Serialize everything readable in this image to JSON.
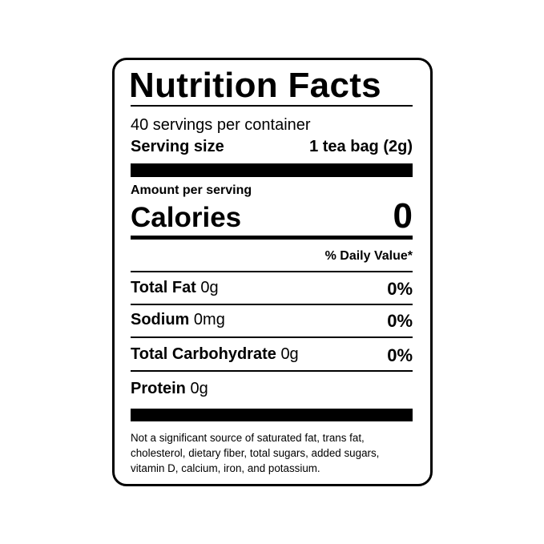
{
  "label": {
    "title": "Nutrition Facts",
    "servings": "40 servings per container",
    "serving_size_label": "Serving size",
    "serving_size_value": "1 tea bag (2g)",
    "amount_per_serving": "Amount per serving",
    "calories_label": "Calories",
    "calories_value": 0,
    "daily_value_header": "% Daily Value*",
    "nutrients": [
      {
        "name": "Total Fat",
        "amount": "0g",
        "dv": "0%"
      },
      {
        "name": "Sodium",
        "amount": "0mg",
        "dv": "0%"
      },
      {
        "name": "Total Carbohydrate",
        "amount": "0g",
        "dv": "0%"
      },
      {
        "name": "Protein",
        "amount": "0g"
      }
    ],
    "footnote": "Not a significant source of saturated fat, trans fat, cholesterol, dietary fiber, total sugars, added sugars, vitamin D, calcium, iron, and potassium."
  }
}
